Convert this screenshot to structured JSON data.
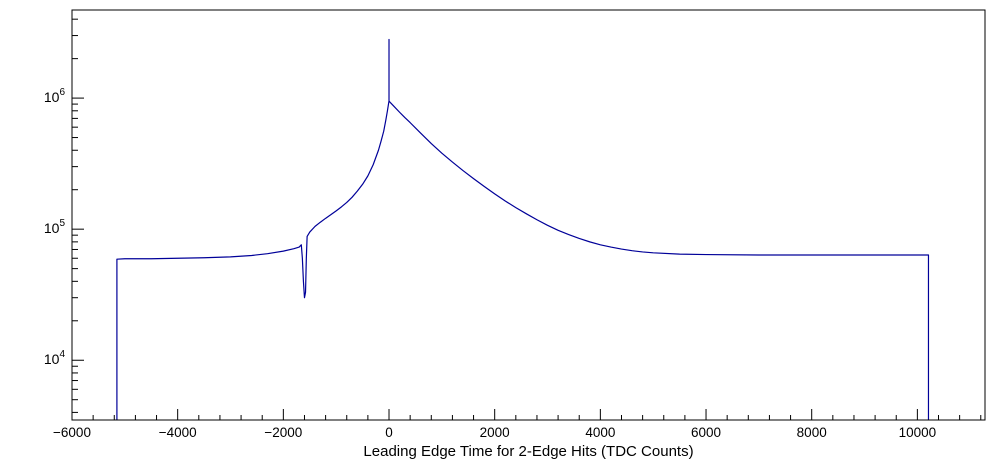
{
  "chart_data": {
    "type": "line",
    "title": "",
    "xlabel": "Leading Edge Time for 2-Edge Hits (TDC Counts)",
    "ylabel": "",
    "y_scale": "log",
    "xlim": [
      -6000,
      11280
    ],
    "ylim": [
      3500,
      4700000
    ],
    "x_ticks": [
      -6000,
      -4000,
      -2000,
      0,
      2000,
      4000,
      6000,
      8000,
      10000
    ],
    "x_minor_step": 400,
    "y_label_exponents": [
      4,
      5,
      6
    ],
    "grid": false,
    "legend": "none",
    "background_color": "#ffffff",
    "frame_color": "#000000",
    "line_color": "#000099",
    "points": [
      [
        -5150,
        3500
      ],
      [
        -5150,
        59000
      ],
      [
        -5000,
        59500
      ],
      [
        -4500,
        59500
      ],
      [
        -4000,
        60000
      ],
      [
        -3500,
        60500
      ],
      [
        -3000,
        61500
      ],
      [
        -2600,
        63000
      ],
      [
        -2300,
        65000
      ],
      [
        -2000,
        68000
      ],
      [
        -1800,
        71000
      ],
      [
        -1700,
        73000
      ],
      [
        -1660,
        76000
      ],
      [
        -1640,
        60000
      ],
      [
        -1620,
        40000
      ],
      [
        -1600,
        30000
      ],
      [
        -1580,
        33000
      ],
      [
        -1565,
        60000
      ],
      [
        -1550,
        88000
      ],
      [
        -1500,
        95000
      ],
      [
        -1400,
        105000
      ],
      [
        -1300,
        113000
      ],
      [
        -1200,
        121000
      ],
      [
        -1100,
        129000
      ],
      [
        -1000,
        138000
      ],
      [
        -900,
        148000
      ],
      [
        -800,
        160000
      ],
      [
        -700,
        175000
      ],
      [
        -600,
        195000
      ],
      [
        -500,
        220000
      ],
      [
        -400,
        255000
      ],
      [
        -300,
        310000
      ],
      [
        -200,
        400000
      ],
      [
        -150,
        470000
      ],
      [
        -100,
        560000
      ],
      [
        -60,
        680000
      ],
      [
        -30,
        800000
      ],
      [
        -10,
        900000
      ],
      [
        0,
        950000
      ],
      [
        0,
        2800000
      ],
      [
        0,
        950000
      ],
      [
        30,
        920000
      ],
      [
        100,
        860000
      ],
      [
        200,
        780000
      ],
      [
        300,
        710000
      ],
      [
        400,
        650000
      ],
      [
        600,
        540000
      ],
      [
        800,
        450000
      ],
      [
        1000,
        380000
      ],
      [
        1200,
        325000
      ],
      [
        1400,
        280000
      ],
      [
        1600,
        243000
      ],
      [
        1800,
        212000
      ],
      [
        2000,
        186000
      ],
      [
        2200,
        164000
      ],
      [
        2400,
        146000
      ],
      [
        2600,
        131000
      ],
      [
        2800,
        118000
      ],
      [
        3000,
        107000
      ],
      [
        3200,
        98000
      ],
      [
        3400,
        91000
      ],
      [
        3600,
        85000
      ],
      [
        3800,
        80000
      ],
      [
        4000,
        76000
      ],
      [
        4200,
        73000
      ],
      [
        4400,
        70500
      ],
      [
        4600,
        68500
      ],
      [
        4800,
        67000
      ],
      [
        5000,
        66000
      ],
      [
        5500,
        64500
      ],
      [
        6000,
        64000
      ],
      [
        7000,
        63500
      ],
      [
        8000,
        63500
      ],
      [
        9000,
        63500
      ],
      [
        10000,
        63500
      ],
      [
        10210,
        63500
      ],
      [
        10210,
        3500
      ]
    ]
  }
}
